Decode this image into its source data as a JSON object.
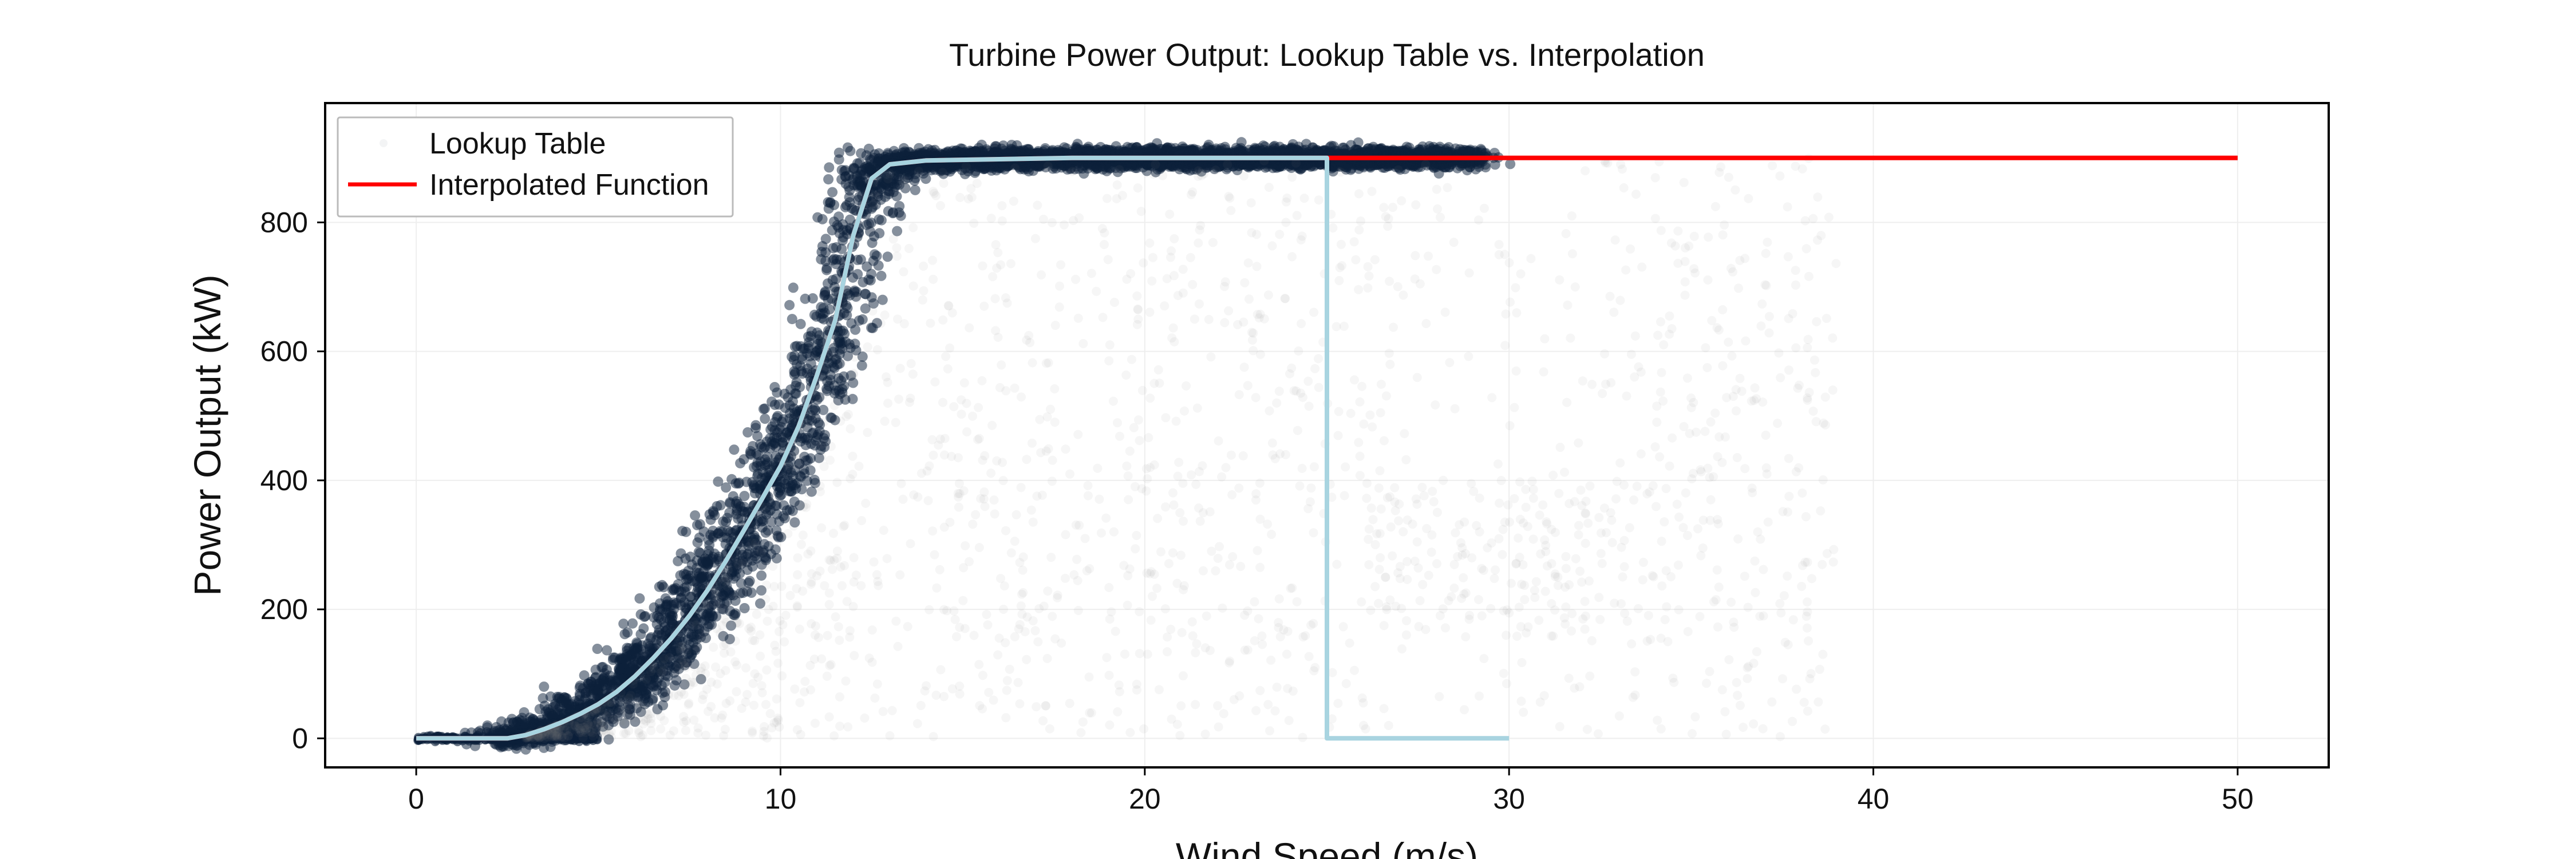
{
  "chart_data": {
    "type": "scatter",
    "title": "Turbine Power Output: Lookup Table vs. Interpolation",
    "xlabel": "Wind Speed (m/s)",
    "ylabel": "Power Output (kW)",
    "xlim": [
      -2.5,
      52.5
    ],
    "ylim": [
      -45,
      985
    ],
    "x_ticks": [
      0,
      10,
      20,
      30,
      40,
      50
    ],
    "y_ticks": [
      0,
      200,
      400,
      600,
      800
    ],
    "grid": true,
    "legend_position": "top-left",
    "colors": {
      "scatter": "#0b1f3a",
      "interpolated": "#ff0000",
      "lookup_line": "#a8d4e0",
      "axes": "#000000",
      "grid": "#eeeeee"
    },
    "series": [
      {
        "name": "Lookup Table",
        "kind": "scatter",
        "description_points": "dense band following the power curve from 2.5 to 29 m/s",
        "x": [
          0,
          2.5,
          3,
          3.5,
          4,
          4.5,
          5,
          5.5,
          6,
          6.5,
          7,
          7.5,
          8,
          8.5,
          9,
          9.5,
          10,
          10.5,
          11,
          11.5,
          12,
          12.5,
          13,
          14,
          16,
          18,
          20,
          22,
          24,
          25,
          26,
          27,
          28,
          29
        ],
        "y": [
          0,
          0,
          5,
          14,
          25,
          38,
          53,
          72,
          96,
          124,
          155,
          190,
          230,
          275,
          323,
          372,
          422,
          484,
          563,
          648,
          780,
          868,
          890,
          896,
          898,
          900,
          900,
          900,
          900,
          900,
          900,
          900,
          900,
          900
        ]
      },
      {
        "name": "Interpolated Function",
        "kind": "line",
        "x": [
          0,
          2.5,
          3,
          3.5,
          4,
          4.5,
          5,
          5.5,
          6,
          6.5,
          7,
          7.5,
          8,
          8.5,
          9,
          9.5,
          10,
          10.5,
          11,
          11.5,
          12,
          12.5,
          13,
          14,
          16,
          18,
          20,
          25,
          30,
          40,
          50
        ],
        "y": [
          0,
          0,
          5,
          14,
          25,
          38,
          53,
          72,
          96,
          124,
          155,
          190,
          230,
          275,
          323,
          372,
          422,
          484,
          563,
          648,
          780,
          868,
          890,
          896,
          898,
          900,
          900,
          900,
          900,
          900,
          900
        ]
      },
      {
        "kind": "line",
        "x": [
          0,
          2.5,
          3,
          3.5,
          4,
          4.5,
          5,
          5.5,
          6,
          6.5,
          7,
          7.5,
          8,
          8.5,
          9,
          9.5,
          10,
          10.5,
          11,
          11.5,
          12,
          12.5,
          13,
          14,
          16,
          18,
          20,
          25,
          25,
          30
        ],
        "y": [
          0,
          0,
          5,
          14,
          25,
          38,
          53,
          72,
          96,
          124,
          155,
          190,
          230,
          275,
          323,
          372,
          422,
          484,
          563,
          648,
          780,
          868,
          890,
          896,
          898,
          900,
          900,
          900,
          0,
          0
        ]
      }
    ]
  }
}
